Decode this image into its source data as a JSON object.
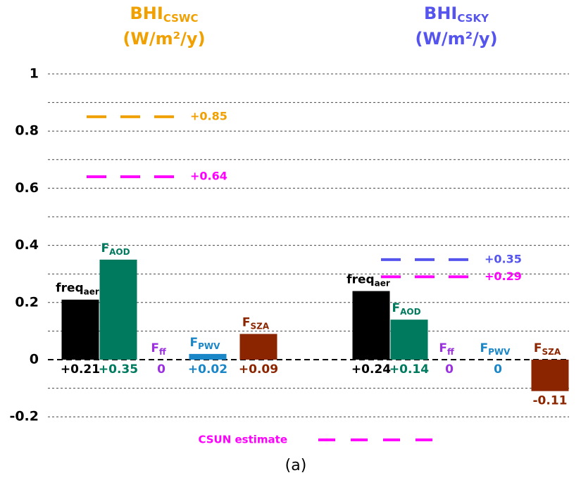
{
  "chart_data": {
    "type": "bar",
    "ylim": [
      -0.25,
      1.05
    ],
    "yticks": [
      -0.2,
      0,
      0.2,
      0.4,
      0.6,
      0.8,
      1
    ],
    "minor_yticks": [
      -0.1,
      0.1,
      0.3,
      0.5,
      0.7,
      0.9
    ],
    "grid": true,
    "caption": "(a)",
    "legend": {
      "label": "CSUN estimate",
      "color": "#ff00ff"
    },
    "groups": [
      {
        "title": "BHI",
        "title_sub": "CSWC",
        "unit": "(W/m²/y)",
        "color": "#f0a000",
        "categories": [
          "freq",
          "F",
          "F",
          "F",
          "F"
        ],
        "category_subs": [
          "aer",
          "AOD",
          "ff",
          "PWV",
          "SZA"
        ],
        "values": [
          0.21,
          0.35,
          0,
          0.02,
          0.09
        ],
        "value_labels": [
          "+0.21",
          "+0.35",
          "0",
          "+0.02",
          "+0.09"
        ],
        "colors": [
          "#000000",
          "#007a5e",
          "#9b30e0",
          "#1a86c8",
          "#8b2500"
        ],
        "estimates": [
          {
            "value": 0.85,
            "label": "+0.85",
            "color": "#f0a000"
          },
          {
            "value": 0.64,
            "label": "+0.64",
            "color": "#ff00ff"
          }
        ]
      },
      {
        "title": "BHI",
        "title_sub": "CSKY",
        "unit": "(W/m²/y)",
        "color": "#5555ee",
        "categories": [
          "freq",
          "F",
          "F",
          "F",
          "F"
        ],
        "category_subs": [
          "aer",
          "AOD",
          "ff",
          "PWV",
          "SZA"
        ],
        "values": [
          0.24,
          0.14,
          0,
          0,
          -0.11
        ],
        "value_labels": [
          "+0.24",
          "+0.14",
          "0",
          "0",
          "-0.11"
        ],
        "colors": [
          "#000000",
          "#007a5e",
          "#9b30e0",
          "#1a86c8",
          "#8b2500"
        ],
        "estimates": [
          {
            "value": 0.35,
            "label": "+0.35",
            "color": "#5555ee"
          },
          {
            "value": 0.29,
            "label": "+0.29",
            "color": "#ff00ff"
          }
        ]
      }
    ]
  }
}
